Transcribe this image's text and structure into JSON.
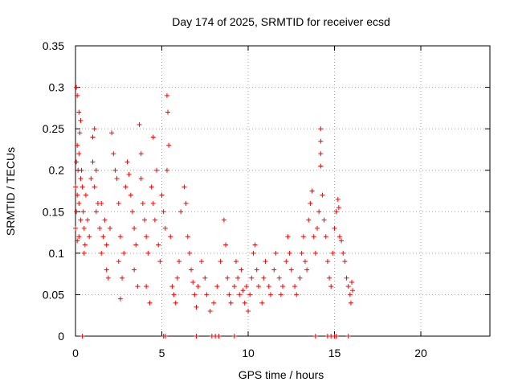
{
  "chart_data": {
    "type": "scatter",
    "title": "Day 174 of 2025, SRMTID for receiver ecsd",
    "xlabel": "GPS time / hours",
    "ylabel": "SRMTID / TECUs",
    "xlim": [
      0,
      24
    ],
    "ylim": [
      0,
      0.35
    ],
    "xticks": [
      "0",
      "5",
      "10",
      "15",
      "20"
    ],
    "xtick_values": [
      0,
      5,
      10,
      15,
      20
    ],
    "yticks": [
      "0",
      "0.05",
      "0.1",
      "0.15",
      "0.2",
      "0.25",
      "0.3",
      "0.35"
    ],
    "ytick_values": [
      0,
      0.05,
      0.1,
      0.15,
      0.2,
      0.25,
      0.3,
      0.35
    ],
    "grid": true,
    "marker": "+",
    "color": "#ff0000",
    "series": [
      {
        "name": "SRMTID",
        "points": [
          [
            0.05,
            0.3
          ],
          [
            0.1,
            0.29
          ],
          [
            0.2,
            0.27
          ],
          [
            0.3,
            0.26
          ],
          [
            0.25,
            0.245
          ],
          [
            0.1,
            0.23
          ],
          [
            0.2,
            0.22
          ],
          [
            0.05,
            0.21
          ],
          [
            0.15,
            0.2
          ],
          [
            0.3,
            0.19
          ],
          [
            0.0,
            0.18
          ],
          [
            0.1,
            0.17
          ],
          [
            0.2,
            0.16
          ],
          [
            0.05,
            0.15
          ],
          [
            0.3,
            0.14
          ],
          [
            0.0,
            0.13
          ],
          [
            0.2,
            0.12
          ],
          [
            0.1,
            0.115
          ],
          [
            0.35,
            0.2
          ],
          [
            0.4,
            0.18
          ],
          [
            0.45,
            0.15
          ],
          [
            0.5,
            0.13
          ],
          [
            0.5,
            0.1
          ],
          [
            0.55,
            0.11
          ],
          [
            0.6,
            0.17
          ],
          [
            0.7,
            0.14
          ],
          [
            0.8,
            0.12
          ],
          [
            0.9,
            0.19
          ],
          [
            1.0,
            0.24
          ],
          [
            1.1,
            0.25
          ],
          [
            1.0,
            0.21
          ],
          [
            1.2,
            0.2
          ],
          [
            1.1,
            0.18
          ],
          [
            1.3,
            0.16
          ],
          [
            1.2,
            0.15
          ],
          [
            1.4,
            0.13
          ],
          [
            1.5,
            0.1
          ],
          [
            1.6,
            0.12
          ],
          [
            1.5,
            0.16
          ],
          [
            1.7,
            0.14
          ],
          [
            1.8,
            0.08
          ],
          [
            1.9,
            0.07
          ],
          [
            1.8,
            0.11
          ],
          [
            2.0,
            0.13
          ],
          [
            2.1,
            0.245
          ],
          [
            2.2,
            0.22
          ],
          [
            2.3,
            0.2
          ],
          [
            2.4,
            0.19
          ],
          [
            2.5,
            0.16
          ],
          [
            2.6,
            0.12
          ],
          [
            2.5,
            0.09
          ],
          [
            2.6,
            0.045
          ],
          [
            2.7,
            0.07
          ],
          [
            2.8,
            0.1
          ],
          [
            2.9,
            0.18
          ],
          [
            3.0,
            0.21
          ],
          [
            3.1,
            0.195
          ],
          [
            3.2,
            0.17
          ],
          [
            3.3,
            0.15
          ],
          [
            3.4,
            0.13
          ],
          [
            3.5,
            0.11
          ],
          [
            3.4,
            0.08
          ],
          [
            3.6,
            0.06
          ],
          [
            3.7,
            0.255
          ],
          [
            3.8,
            0.22
          ],
          [
            3.8,
            0.19
          ],
          [
            3.9,
            0.16
          ],
          [
            4.0,
            0.14
          ],
          [
            4.1,
            0.12
          ],
          [
            4.2,
            0.1
          ],
          [
            4.1,
            0.06
          ],
          [
            4.3,
            0.04
          ],
          [
            4.4,
            0.18
          ],
          [
            4.5,
            0.16
          ],
          [
            4.6,
            0.14
          ],
          [
            4.5,
            0.24
          ],
          [
            4.7,
            0.2
          ],
          [
            4.8,
            0.11
          ],
          [
            4.9,
            0.09
          ],
          [
            5.0,
            0.17
          ],
          [
            5.1,
            0.15
          ],
          [
            5.2,
            0.13
          ],
          [
            5.3,
            0.29
          ],
          [
            5.35,
            0.27
          ],
          [
            5.4,
            0.23
          ],
          [
            5.3,
            0.2
          ],
          [
            5.5,
            0.12
          ],
          [
            5.6,
            0.06
          ],
          [
            5.7,
            0.05
          ],
          [
            5.8,
            0.04
          ],
          [
            5.9,
            0.07
          ],
          [
            6.0,
            0.09
          ],
          [
            6.1,
            0.15
          ],
          [
            6.3,
            0.18
          ],
          [
            6.4,
            0.16
          ],
          [
            6.5,
            0.12
          ],
          [
            6.6,
            0.1
          ],
          [
            6.7,
            0.08
          ],
          [
            6.8,
            0.065
          ],
          [
            6.9,
            0.05
          ],
          [
            7.0,
            0.035
          ],
          [
            7.1,
            0.06
          ],
          [
            7.3,
            0.09
          ],
          [
            7.5,
            0.07
          ],
          [
            7.6,
            0.05
          ],
          [
            7.8,
            0.03
          ],
          [
            8.0,
            0.04
          ],
          [
            8.2,
            0.06
          ],
          [
            8.4,
            0.09
          ],
          [
            8.6,
            0.14
          ],
          [
            8.7,
            0.11
          ],
          [
            8.8,
            0.07
          ],
          [
            8.9,
            0.05
          ],
          [
            9.0,
            0.04
          ],
          [
            9.2,
            0.06
          ],
          [
            9.3,
            0.09
          ],
          [
            9.4,
            0.07
          ],
          [
            9.5,
            0.05
          ],
          [
            9.6,
            0.08
          ],
          [
            9.7,
            0.055
          ],
          [
            9.8,
            0.04
          ],
          [
            9.9,
            0.06
          ],
          [
            10.0,
            0.03
          ],
          [
            10.1,
            0.05
          ],
          [
            10.2,
            0.07
          ],
          [
            10.3,
            0.1
          ],
          [
            10.4,
            0.11
          ],
          [
            10.5,
            0.08
          ],
          [
            10.6,
            0.06
          ],
          [
            10.8,
            0.04
          ],
          [
            10.9,
            0.07
          ],
          [
            11.0,
            0.09
          ],
          [
            11.2,
            0.06
          ],
          [
            11.3,
            0.05
          ],
          [
            11.5,
            0.08
          ],
          [
            11.6,
            0.1
          ],
          [
            11.8,
            0.07
          ],
          [
            11.9,
            0.05
          ],
          [
            12.0,
            0.06
          ],
          [
            12.2,
            0.09
          ],
          [
            12.3,
            0.12
          ],
          [
            12.4,
            0.1
          ],
          [
            12.5,
            0.08
          ],
          [
            12.7,
            0.06
          ],
          [
            12.8,
            0.05
          ],
          [
            13.0,
            0.07
          ],
          [
            13.1,
            0.1
          ],
          [
            13.2,
            0.12
          ],
          [
            13.3,
            0.09
          ],
          [
            13.4,
            0.08
          ],
          [
            13.5,
            0.14
          ],
          [
            13.6,
            0.16
          ],
          [
            13.7,
            0.175
          ],
          [
            13.8,
            0.12
          ],
          [
            13.9,
            0.1
          ],
          [
            14.0,
            0.13
          ],
          [
            14.1,
            0.15
          ],
          [
            14.2,
            0.25
          ],
          [
            14.2,
            0.235
          ],
          [
            14.2,
            0.22
          ],
          [
            14.2,
            0.205
          ],
          [
            14.3,
            0.17
          ],
          [
            14.4,
            0.14
          ],
          [
            14.5,
            0.12
          ],
          [
            14.6,
            0.09
          ],
          [
            14.7,
            0.07
          ],
          [
            14.8,
            0.06
          ],
          [
            14.9,
            0.1
          ],
          [
            15.0,
            0.13
          ],
          [
            15.1,
            0.15
          ],
          [
            15.2,
            0.165
          ],
          [
            15.25,
            0.155
          ],
          [
            15.3,
            0.12
          ],
          [
            15.4,
            0.115
          ],
          [
            15.5,
            0.1
          ],
          [
            15.6,
            0.09
          ],
          [
            15.7,
            0.07
          ],
          [
            15.8,
            0.06
          ],
          [
            15.9,
            0.05
          ],
          [
            16.0,
            0.065
          ],
          [
            15.95,
            0.04
          ],
          [
            16.05,
            0.055
          ],
          [
            0.4,
            0.0
          ],
          [
            5.1,
            0.0
          ],
          [
            5.2,
            0.0
          ],
          [
            7.0,
            0.0
          ],
          [
            7.9,
            0.0
          ],
          [
            8.1,
            0.0
          ],
          [
            8.3,
            0.0
          ],
          [
            9.2,
            0.0
          ],
          [
            13.9,
            0.0
          ],
          [
            14.6,
            0.0
          ],
          [
            14.8,
            0.0
          ],
          [
            15.0,
            0.0
          ],
          [
            15.1,
            0.0
          ],
          [
            15.8,
            0.0
          ]
        ]
      }
    ]
  }
}
